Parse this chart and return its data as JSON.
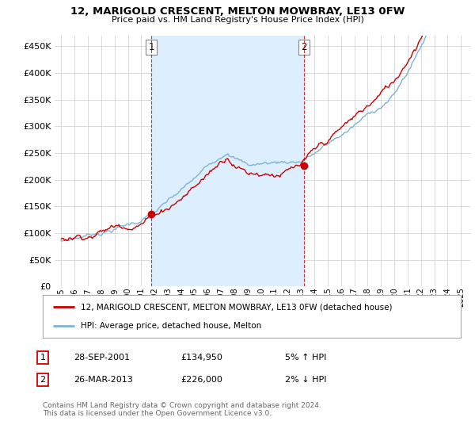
{
  "title": "12, MARIGOLD CRESCENT, MELTON MOWBRAY, LE13 0FW",
  "subtitle": "Price paid vs. HM Land Registry's House Price Index (HPI)",
  "ytick_values": [
    0,
    50000,
    100000,
    150000,
    200000,
    250000,
    300000,
    350000,
    400000,
    450000
  ],
  "ylim": [
    0,
    470000
  ],
  "purchase1_price": 134950,
  "purchase1_year": 2001.75,
  "purchase2_price": 226000,
  "purchase2_year": 2013.23,
  "legend_line1": "12, MARIGOLD CRESCENT, MELTON MOWBRAY, LE13 0FW (detached house)",
  "legend_line2": "HPI: Average price, detached house, Melton",
  "annotation1_date": "28-SEP-2001",
  "annotation1_price": "£134,950",
  "annotation1_hpi": "5% ↑ HPI",
  "annotation2_date": "26-MAR-2013",
  "annotation2_price": "£226,000",
  "annotation2_hpi": "2% ↓ HPI",
  "footer": "Contains HM Land Registry data © Crown copyright and database right 2024.\nThis data is licensed under the Open Government Licence v3.0.",
  "line_color_red": "#cc0000",
  "line_color_blue": "#7fb3d3",
  "shade_color": "#ddeeff",
  "grid_color": "#cccccc",
  "background_color": "#ffffff"
}
